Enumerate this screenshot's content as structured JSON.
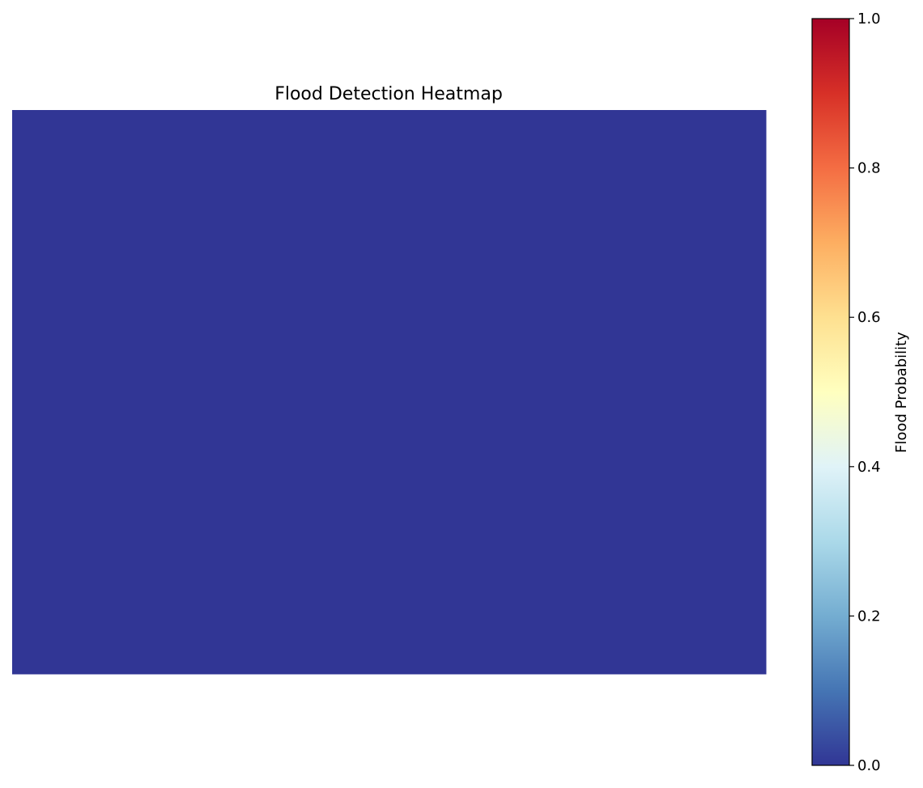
{
  "chart_data": {
    "type": "heatmap",
    "title": "Flood Detection Heatmap",
    "xlabel": "",
    "ylabel": "",
    "axes_visible": false,
    "grid": false,
    "values": [
      [
        0.0
      ]
    ],
    "colormap": "RdYlBu_r",
    "colormap_stops": [
      "#313695",
      "#4575b4",
      "#74add1",
      "#abd9e9",
      "#e0f3f8",
      "#ffffbf",
      "#fee090",
      "#fdae61",
      "#f46d43",
      "#d73027",
      "#a50026"
    ],
    "colorbar": {
      "label": "Flood Probability",
      "range": [
        0.0,
        1.0
      ],
      "ticks": [
        0.0,
        0.2,
        0.4,
        0.6,
        0.8,
        1.0
      ],
      "tick_labels": [
        "0.0",
        "0.2",
        "0.4",
        "0.6",
        "0.8",
        "1.0"
      ],
      "placement": "right"
    }
  }
}
